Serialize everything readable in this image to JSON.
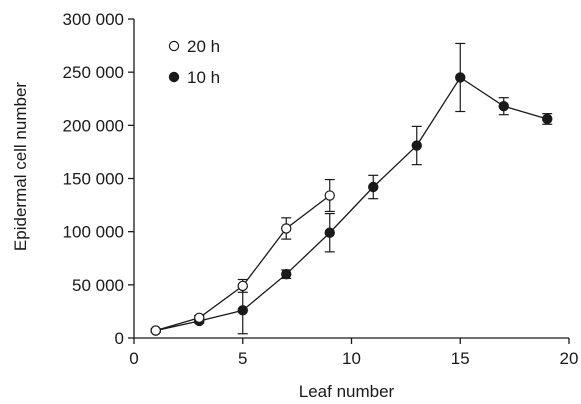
{
  "chart_data": {
    "type": "line",
    "xlabel": "Leaf number",
    "ylabel": "Epidermal cell number",
    "xlim": [
      0,
      20
    ],
    "ylim": [
      0,
      300000
    ],
    "x_ticks": [
      0,
      5,
      10,
      15,
      20
    ],
    "y_ticks": [
      0,
      50000,
      100000,
      150000,
      200000,
      250000,
      300000
    ],
    "x_tick_labels": [
      "0",
      "5",
      "10",
      "15",
      "20"
    ],
    "y_tick_labels": [
      "0",
      "50 000",
      "100 000",
      "150 000",
      "200 000",
      "250 000",
      "300 000"
    ],
    "grid": false,
    "legend_position": "top-left",
    "series": [
      {
        "name": "20 h",
        "marker": "open-circle",
        "x": [
          1,
          3,
          5,
          7,
          9
        ],
        "y": [
          7000,
          19000,
          49000,
          103000,
          134000
        ],
        "err": [
          1500,
          2000,
          6000,
          10000,
          15000
        ]
      },
      {
        "name": "10 h",
        "marker": "filled-circle",
        "x": [
          1,
          3,
          5,
          7,
          9,
          11,
          13,
          15,
          17,
          19
        ],
        "y": [
          7000,
          16000,
          26000,
          60000,
          99000,
          142000,
          181000,
          245000,
          218000,
          206000
        ],
        "err": [
          1500,
          2000,
          22000,
          4000,
          18000,
          11000,
          18000,
          32000,
          8000,
          5000
        ]
      }
    ]
  }
}
